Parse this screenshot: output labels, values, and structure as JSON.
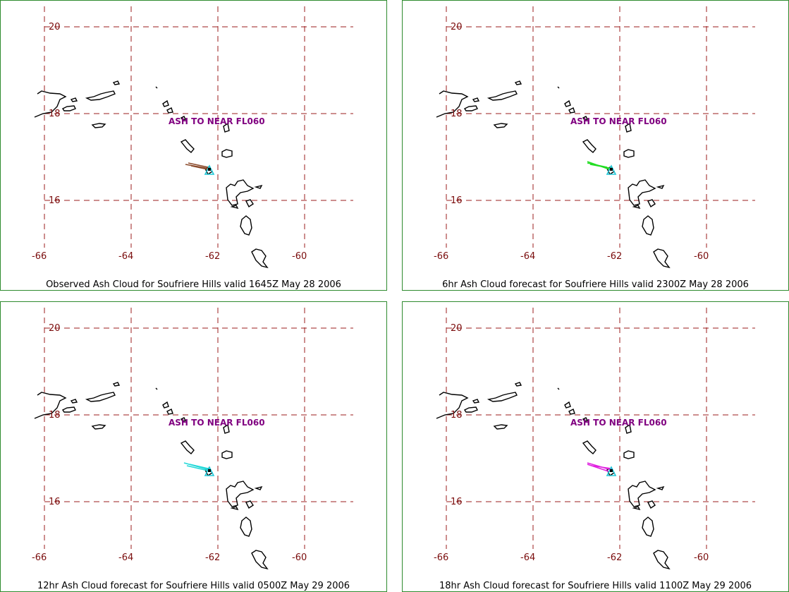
{
  "map": {
    "lon_ticks": [
      "-66",
      "-64",
      "-62",
      "-60"
    ],
    "lat_ticks": [
      "20",
      "18",
      "16"
    ],
    "annotation": "ASH TO NEAR FL060",
    "volcano_icon": "volcano-triangle-icon"
  },
  "panels": [
    {
      "caption": "Observed Ash Cloud for Soufriere  Hills valid 1645Z May 28 2006",
      "plume_color": "#8b4a2b"
    },
    {
      "caption": "6hr Ash Cloud forecast for Soufriere  Hills valid 2300Z May 28 2006",
      "plume_color": "#22dd22"
    },
    {
      "caption": "12hr Ash Cloud forecast for Soufriere  Hills valid 0500Z May 29 2006",
      "plume_color": "#22d8d8"
    },
    {
      "caption": "18hr Ash Cloud forecast for Soufriere  Hills valid 1100Z May 29 2006",
      "plume_color": "#e020e0"
    }
  ],
  "colors": {
    "grid": "#9b1c1c",
    "label": "#7a0c0c",
    "annotation": "#800080",
    "volcano": "#20c8d8",
    "border": "#2e8b2e"
  }
}
